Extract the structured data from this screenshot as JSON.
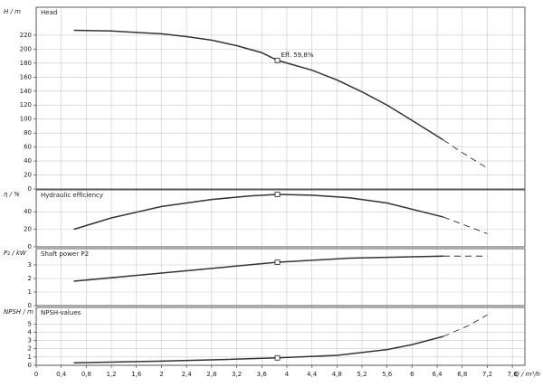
{
  "chart_data": [
    {
      "type": "line",
      "ylabel": "H / m",
      "xlim": [
        0,
        7.8
      ],
      "ylim": [
        0,
        260
      ],
      "yticks": [
        0,
        20,
        40,
        60,
        80,
        100,
        120,
        140,
        160,
        180,
        200,
        220
      ],
      "grid": true,
      "series": [
        {
          "name": "Head",
          "color": "#333333",
          "x": [
            0.6,
            1.2,
            1.6,
            2,
            2.4,
            2.8,
            3.2,
            3.6,
            3.85,
            4.4,
            4.8,
            5.2,
            5.6,
            6,
            6.5
          ],
          "values": [
            227,
            226,
            224,
            222,
            218,
            213,
            205,
            195,
            184,
            170,
            156,
            139,
            120,
            98,
            70
          ]
        },
        {
          "color": "#333333",
          "dashed": true,
          "x": [
            6.5,
            6.8,
            7.2
          ],
          "values": [
            70,
            52,
            30
          ]
        }
      ],
      "marker": {
        "x": 3.85,
        "y": 184
      },
      "annotation": "Eff.  59,8%"
    },
    {
      "type": "line",
      "ylabel": "η / %",
      "xlim": [
        0,
        7.8
      ],
      "ylim": [
        0,
        65
      ],
      "yticks": [
        0,
        20,
        40
      ],
      "grid": true,
      "series": [
        {
          "name": "Hydraulic efficiency",
          "color": "#333333",
          "x": [
            0.6,
            1.2,
            2,
            2.8,
            3.4,
            3.85,
            4.4,
            5,
            5.6,
            6.5
          ],
          "values": [
            20,
            33,
            46,
            54,
            58,
            59.8,
            59,
            56,
            50,
            34
          ]
        },
        {
          "color": "#333333",
          "dashed": true,
          "x": [
            6.5,
            7.2
          ],
          "values": [
            34,
            15
          ]
        }
      ],
      "marker": {
        "x": 3.85,
        "y": 59.8
      }
    },
    {
      "type": "line",
      "ylabel": "P₂ / kW",
      "xlim": [
        0,
        7.8
      ],
      "ylim": [
        0,
        4.2
      ],
      "yticks": [
        0,
        1,
        2,
        3
      ],
      "grid": true,
      "series": [
        {
          "name": "Shaft power P2",
          "color": "#333333",
          "x": [
            0.6,
            2,
            3.85,
            5,
            6.5
          ],
          "values": [
            1.8,
            2.4,
            3.2,
            3.5,
            3.65
          ]
        },
        {
          "color": "#333333",
          "dashed": true,
          "x": [
            6.5,
            7.2
          ],
          "values": [
            3.65,
            3.65
          ]
        }
      ],
      "marker": {
        "x": 3.85,
        "y": 3.2
      }
    },
    {
      "type": "line",
      "ylabel": "NPSH / m",
      "xlabel": "Q / m³/h",
      "xlim": [
        0,
        7.8
      ],
      "ylim": [
        0,
        7
      ],
      "yticks": [
        0,
        1,
        2,
        3,
        4,
        5
      ],
      "grid": true,
      "xticks": [
        0,
        {
          "value": 0.4,
          "label": "0,4"
        },
        {
          "value": 0.8,
          "label": "0,8"
        },
        {
          "value": 1.2,
          "label": "1,2"
        },
        {
          "value": 1.6,
          "label": "1,6"
        },
        2,
        {
          "value": 2.4,
          "label": "2,4"
        },
        {
          "value": 2.8,
          "label": "2,8"
        },
        {
          "value": 3.2,
          "label": "3,2"
        },
        {
          "value": 3.6,
          "label": "3,6"
        },
        4,
        {
          "value": 4.4,
          "label": "4,4"
        },
        {
          "value": 4.8,
          "label": "4,8"
        },
        {
          "value": 5.2,
          "label": "5,2"
        },
        {
          "value": 5.6,
          "label": "5,6"
        },
        6,
        {
          "value": 6.4,
          "label": "6,4"
        },
        {
          "value": 6.8,
          "label": "6,8"
        },
        {
          "value": 7.2,
          "label": "7,2"
        },
        {
          "value": 7.6,
          "label": "7,6"
        }
      ],
      "series": [
        {
          "name": "NPSH-values",
          "color": "#333333",
          "x": [
            0.6,
            2,
            3,
            3.85,
            4.8,
            5.6,
            6,
            6.5
          ],
          "values": [
            0.3,
            0.5,
            0.7,
            0.9,
            1.2,
            1.9,
            2.5,
            3.5
          ]
        },
        {
          "color": "#333333",
          "dashed": true,
          "x": [
            6.5,
            6.9,
            7.2
          ],
          "values": [
            3.5,
            4.8,
            6.1
          ]
        }
      ],
      "marker": {
        "x": 3.85,
        "y": 0.9
      }
    }
  ]
}
